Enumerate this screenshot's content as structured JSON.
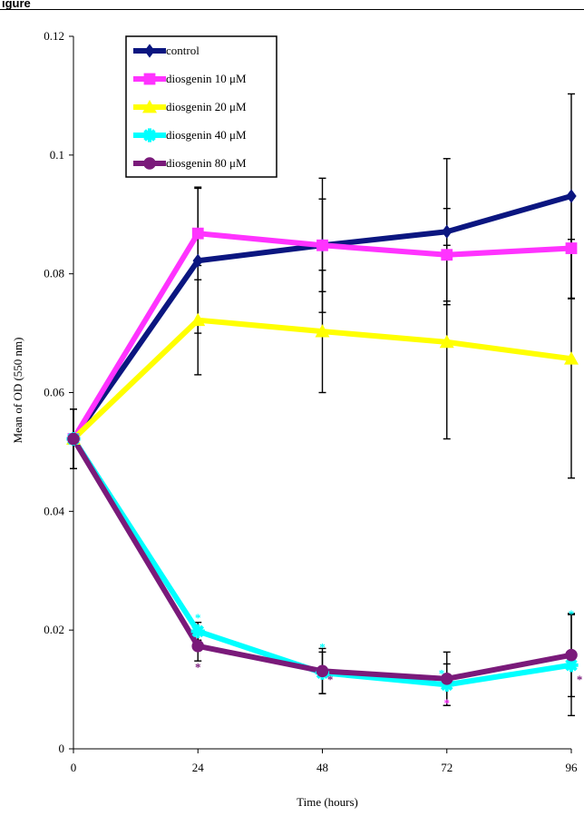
{
  "figure": {
    "label": "igure"
  },
  "chart_data": {
    "type": "line",
    "xlabel": "Time (hours)",
    "ylabel": "Mean of OD (550 nm)",
    "x": [
      0,
      24,
      48,
      72,
      96
    ],
    "x_ticks": [
      "0",
      "24",
      "48",
      "72",
      "96"
    ],
    "y_ticks": [
      "0",
      "0.02",
      "0.04",
      "0.06",
      "0.08",
      "0.1",
      "0.12"
    ],
    "xlim": [
      0,
      96
    ],
    "ylim": [
      0,
      0.12
    ],
    "grid": false,
    "legend_position": "top-left",
    "series": [
      {
        "name": "control",
        "color": "#0b1680",
        "marker": "diamond",
        "values": [
          0.0522,
          0.0822,
          0.0848,
          0.0871,
          0.0931
        ],
        "error": [
          0.005,
          0.0122,
          0.0113,
          0.0123,
          0.0172
        ]
      },
      {
        "name": "diosgenin 10 μM",
        "color": "#ff33ff",
        "marker": "square",
        "values": [
          0.0522,
          0.0868,
          0.0848,
          0.0832,
          0.0843
        ],
        "error": [
          0.005,
          0.0078,
          0.0078,
          0.0078,
          0.0085
        ]
      },
      {
        "name": "diosgenin 20 μM",
        "color": "#ffff00",
        "marker": "triangle",
        "values": [
          0.0522,
          0.0722,
          0.0703,
          0.0685,
          0.0657
        ],
        "error": [
          0.005,
          0.0092,
          0.0103,
          0.0163,
          0.0201
        ]
      },
      {
        "name": "diosgenin 40 μM",
        "color": "#00ffff",
        "marker": "star",
        "values": [
          0.0522,
          0.0198,
          0.0128,
          0.0108,
          0.0141
        ],
        "error": [
          0.005,
          0.0015,
          0.0035,
          0.0035,
          0.0085
        ]
      },
      {
        "name": "diosgenin 80 μM",
        "color": "#7a1a7a",
        "marker": "circle",
        "values": [
          0.0522,
          0.0173,
          0.0131,
          0.0118,
          0.0158
        ],
        "error": [
          0.005,
          0.0025,
          0.0038,
          0.0045,
          0.007
        ]
      }
    ],
    "annotations": [
      {
        "text": "*",
        "x": 24,
        "y": 0.0222,
        "color": "#00ffff"
      },
      {
        "text": "*",
        "x": 24,
        "y": 0.0138,
        "color": "#7a1a7a"
      },
      {
        "text": "*",
        "x": 48,
        "y": 0.0172,
        "color": "#00ffff"
      },
      {
        "text": "*",
        "x": 49.5,
        "y": 0.0118,
        "color": "#7a1a7a"
      },
      {
        "text": "*",
        "x": 71,
        "y": 0.0128,
        "color": "#00ffff"
      },
      {
        "text": "*",
        "x": 72,
        "y": 0.0078,
        "color": "#ff33ff"
      },
      {
        "text": "*",
        "x": 96,
        "y": 0.0228,
        "color": "#00ffff"
      },
      {
        "text": "*",
        "x": 97.6,
        "y": 0.0118,
        "color": "#7a1a7a"
      }
    ]
  }
}
